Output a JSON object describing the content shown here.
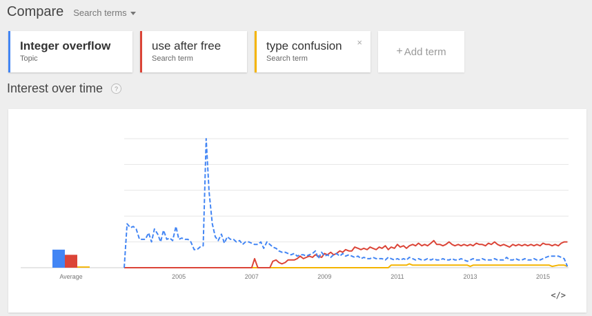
{
  "header": {
    "title": "Compare",
    "search_terms_label": "Search terms"
  },
  "terms": [
    {
      "name": "Integer overflow",
      "type": "Topic",
      "color": "#4285f4",
      "bold": true,
      "closable": false
    },
    {
      "name": "use after free",
      "type": "Search term",
      "color": "#db4437",
      "bold": false,
      "closable": false
    },
    {
      "name": "type confusion",
      "type": "Search term",
      "color": "#f4b400",
      "bold": false,
      "closable": true
    }
  ],
  "close_glyph": "×",
  "add_term": {
    "plus": "+",
    "label": "Add term"
  },
  "section": {
    "title": "Interest over time",
    "help_glyph": "?"
  },
  "embed_glyph": "</>",
  "chart_data": {
    "type": "line",
    "xlabel": "",
    "ylabel": "",
    "ylim": [
      0,
      100
    ],
    "grid": true,
    "x_range": [
      2004.0,
      2016.2
    ],
    "x_ticks": [
      2005,
      2007,
      2009,
      2011,
      2013,
      2015
    ],
    "x_tick_labels": [
      "2005",
      "2007",
      "2009",
      "2011",
      "2013",
      "2015"
    ],
    "average": {
      "label": "Average",
      "values": [
        {
          "series": "Integer overflow",
          "value": 14
        },
        {
          "series": "use after free",
          "value": 10
        },
        {
          "series": "type confusion",
          "value": 1
        }
      ]
    },
    "series": [
      {
        "name": "Integer overflow",
        "color": "#4285f4",
        "dashed": true,
        "points": [
          [
            2004.0,
            0
          ],
          [
            2004.08,
            34
          ],
          [
            2004.17,
            31
          ],
          [
            2004.25,
            32
          ],
          [
            2004.33,
            30
          ],
          [
            2004.42,
            22
          ],
          [
            2004.5,
            22
          ],
          [
            2004.58,
            22
          ],
          [
            2004.67,
            27
          ],
          [
            2004.75,
            20
          ],
          [
            2004.83,
            30
          ],
          [
            2004.92,
            26
          ],
          [
            2005.0,
            20
          ],
          [
            2005.08,
            29
          ],
          [
            2005.17,
            22
          ],
          [
            2005.25,
            23
          ],
          [
            2005.33,
            21
          ],
          [
            2005.42,
            32
          ],
          [
            2005.5,
            22
          ],
          [
            2005.58,
            23
          ],
          [
            2005.67,
            22
          ],
          [
            2005.75,
            22
          ],
          [
            2005.83,
            20
          ],
          [
            2005.92,
            14
          ],
          [
            2006.0,
            14
          ],
          [
            2006.08,
            16
          ],
          [
            2006.17,
            17
          ],
          [
            2006.25,
            100
          ],
          [
            2006.33,
            59
          ],
          [
            2006.42,
            34
          ],
          [
            2006.5,
            24
          ],
          [
            2006.58,
            21
          ],
          [
            2006.67,
            26
          ],
          [
            2006.75,
            19
          ],
          [
            2006.83,
            24
          ],
          [
            2006.92,
            22
          ],
          [
            2007.0,
            22
          ],
          [
            2007.08,
            20
          ],
          [
            2007.17,
            21
          ],
          [
            2007.25,
            18
          ],
          [
            2007.33,
            20
          ],
          [
            2007.42,
            20
          ],
          [
            2007.5,
            19
          ],
          [
            2007.58,
            18
          ],
          [
            2007.67,
            18
          ],
          [
            2007.75,
            20
          ],
          [
            2007.83,
            15
          ],
          [
            2007.92,
            20
          ],
          [
            2008.0,
            18
          ],
          [
            2008.08,
            16
          ],
          [
            2008.17,
            15
          ],
          [
            2008.25,
            13
          ],
          [
            2008.33,
            12
          ],
          [
            2008.42,
            12
          ],
          [
            2008.5,
            11
          ],
          [
            2008.58,
            10
          ],
          [
            2008.67,
            11
          ],
          [
            2008.75,
            9
          ],
          [
            2008.83,
            10
          ],
          [
            2008.92,
            10
          ],
          [
            2009.0,
            9
          ],
          [
            2009.08,
            10
          ],
          [
            2009.17,
            11
          ],
          [
            2009.25,
            13
          ],
          [
            2009.33,
            7
          ],
          [
            2009.42,
            12
          ],
          [
            2009.5,
            9
          ],
          [
            2009.58,
            10
          ],
          [
            2009.67,
            8
          ],
          [
            2009.75,
            10
          ],
          [
            2009.83,
            11
          ],
          [
            2009.92,
            9
          ],
          [
            2010.0,
            11
          ],
          [
            2010.08,
            9
          ],
          [
            2010.17,
            10
          ],
          [
            2010.25,
            9
          ],
          [
            2010.33,
            8
          ],
          [
            2010.42,
            9
          ],
          [
            2010.5,
            7
          ],
          [
            2010.58,
            8
          ],
          [
            2010.67,
            7
          ],
          [
            2010.75,
            7
          ],
          [
            2010.83,
            8
          ],
          [
            2010.92,
            7
          ],
          [
            2011.0,
            7
          ],
          [
            2011.08,
            7
          ],
          [
            2011.17,
            6
          ],
          [
            2011.25,
            8
          ],
          [
            2011.33,
            7
          ],
          [
            2011.42,
            6
          ],
          [
            2011.5,
            7
          ],
          [
            2011.58,
            6
          ],
          [
            2011.67,
            7
          ],
          [
            2011.75,
            6
          ],
          [
            2011.83,
            8
          ],
          [
            2011.92,
            7
          ],
          [
            2012.0,
            6
          ],
          [
            2012.08,
            7
          ],
          [
            2012.17,
            6
          ],
          [
            2012.25,
            6
          ],
          [
            2012.33,
            7
          ],
          [
            2012.42,
            6
          ],
          [
            2012.5,
            7
          ],
          [
            2012.58,
            6
          ],
          [
            2012.67,
            6
          ],
          [
            2012.75,
            7
          ],
          [
            2012.83,
            6
          ],
          [
            2012.92,
            6
          ],
          [
            2013.0,
            7
          ],
          [
            2013.08,
            6
          ],
          [
            2013.17,
            6
          ],
          [
            2013.25,
            7
          ],
          [
            2013.33,
            6
          ],
          [
            2013.42,
            5
          ],
          [
            2013.5,
            6
          ],
          [
            2013.58,
            7
          ],
          [
            2013.67,
            6
          ],
          [
            2013.75,
            6
          ],
          [
            2013.83,
            7
          ],
          [
            2013.92,
            6
          ],
          [
            2014.0,
            6
          ],
          [
            2014.08,
            6
          ],
          [
            2014.17,
            7
          ],
          [
            2014.25,
            6
          ],
          [
            2014.33,
            6
          ],
          [
            2014.42,
            6
          ],
          [
            2014.5,
            8
          ],
          [
            2014.58,
            6
          ],
          [
            2014.67,
            6
          ],
          [
            2014.75,
            7
          ],
          [
            2014.83,
            6
          ],
          [
            2014.92,
            6
          ],
          [
            2015.0,
            7
          ],
          [
            2015.08,
            6
          ],
          [
            2015.17,
            6
          ],
          [
            2015.25,
            7
          ],
          [
            2015.33,
            6
          ],
          [
            2015.42,
            6
          ],
          [
            2015.5,
            7
          ],
          [
            2015.58,
            8
          ],
          [
            2015.67,
            9
          ],
          [
            2015.75,
            9
          ],
          [
            2015.83,
            9
          ],
          [
            2015.92,
            9
          ],
          [
            2016.0,
            8
          ],
          [
            2016.08,
            7
          ],
          [
            2016.17,
            1
          ]
        ]
      },
      {
        "name": "use after free",
        "color": "#db4437",
        "dashed": false,
        "points": [
          [
            2004.0,
            0
          ],
          [
            2007.5,
            0
          ],
          [
            2007.58,
            7
          ],
          [
            2007.67,
            0
          ],
          [
            2008.0,
            0
          ],
          [
            2008.08,
            5
          ],
          [
            2008.17,
            6
          ],
          [
            2008.25,
            4
          ],
          [
            2008.33,
            3
          ],
          [
            2008.42,
            4
          ],
          [
            2008.5,
            6
          ],
          [
            2008.58,
            6
          ],
          [
            2008.67,
            6
          ],
          [
            2008.75,
            7
          ],
          [
            2008.83,
            9
          ],
          [
            2008.92,
            7
          ],
          [
            2009.0,
            8
          ],
          [
            2009.08,
            9
          ],
          [
            2009.17,
            8
          ],
          [
            2009.25,
            10
          ],
          [
            2009.33,
            9
          ],
          [
            2009.42,
            8
          ],
          [
            2009.5,
            11
          ],
          [
            2009.58,
            10
          ],
          [
            2009.67,
            12
          ],
          [
            2009.75,
            10
          ],
          [
            2009.83,
            11
          ],
          [
            2009.92,
            13
          ],
          [
            2010.0,
            12
          ],
          [
            2010.08,
            14
          ],
          [
            2010.17,
            13
          ],
          [
            2010.25,
            13
          ],
          [
            2010.33,
            16
          ],
          [
            2010.42,
            15
          ],
          [
            2010.5,
            14
          ],
          [
            2010.58,
            15
          ],
          [
            2010.67,
            14
          ],
          [
            2010.75,
            16
          ],
          [
            2010.83,
            15
          ],
          [
            2010.92,
            14
          ],
          [
            2011.0,
            16
          ],
          [
            2011.08,
            15
          ],
          [
            2011.17,
            17
          ],
          [
            2011.25,
            14
          ],
          [
            2011.33,
            16
          ],
          [
            2011.42,
            15
          ],
          [
            2011.5,
            18
          ],
          [
            2011.58,
            16
          ],
          [
            2011.67,
            17
          ],
          [
            2011.75,
            15
          ],
          [
            2011.83,
            17
          ],
          [
            2011.92,
            18
          ],
          [
            2012.0,
            17
          ],
          [
            2012.08,
            19
          ],
          [
            2012.17,
            17
          ],
          [
            2012.25,
            18
          ],
          [
            2012.33,
            17
          ],
          [
            2012.42,
            19
          ],
          [
            2012.5,
            21
          ],
          [
            2012.58,
            18
          ],
          [
            2012.67,
            18
          ],
          [
            2012.75,
            17
          ],
          [
            2012.83,
            18
          ],
          [
            2012.92,
            20
          ],
          [
            2013.0,
            18
          ],
          [
            2013.08,
            17
          ],
          [
            2013.17,
            18
          ],
          [
            2013.25,
            17
          ],
          [
            2013.33,
            18
          ],
          [
            2013.42,
            17
          ],
          [
            2013.5,
            18
          ],
          [
            2013.58,
            17
          ],
          [
            2013.67,
            19
          ],
          [
            2013.75,
            18
          ],
          [
            2013.83,
            18
          ],
          [
            2013.92,
            17
          ],
          [
            2014.0,
            19
          ],
          [
            2014.08,
            18
          ],
          [
            2014.17,
            20
          ],
          [
            2014.25,
            18
          ],
          [
            2014.33,
            17
          ],
          [
            2014.42,
            18
          ],
          [
            2014.5,
            17
          ],
          [
            2014.58,
            16
          ],
          [
            2014.67,
            18
          ],
          [
            2014.75,
            17
          ],
          [
            2014.83,
            18
          ],
          [
            2014.92,
            17
          ],
          [
            2015.0,
            18
          ],
          [
            2015.08,
            17
          ],
          [
            2015.17,
            18
          ],
          [
            2015.25,
            17
          ],
          [
            2015.33,
            18
          ],
          [
            2015.42,
            17
          ],
          [
            2015.5,
            19
          ],
          [
            2015.58,
            18
          ],
          [
            2015.67,
            18
          ],
          [
            2015.75,
            17
          ],
          [
            2015.83,
            18
          ],
          [
            2015.92,
            17
          ],
          [
            2016.0,
            19
          ],
          [
            2016.08,
            20
          ],
          [
            2016.17,
            20
          ]
        ]
      },
      {
        "name": "type confusion",
        "color": "#f4b400",
        "dashed": false,
        "points": [
          [
            2004.0,
            0
          ],
          [
            2011.25,
            0
          ],
          [
            2011.33,
            2
          ],
          [
            2011.75,
            2
          ],
          [
            2011.83,
            3
          ],
          [
            2011.92,
            2
          ],
          [
            2013.42,
            2
          ],
          [
            2013.5,
            1
          ],
          [
            2013.58,
            2
          ],
          [
            2015.67,
            2
          ],
          [
            2015.75,
            1
          ],
          [
            2015.92,
            2
          ],
          [
            2016.08,
            2
          ],
          [
            2016.17,
            1
          ]
        ]
      }
    ]
  }
}
